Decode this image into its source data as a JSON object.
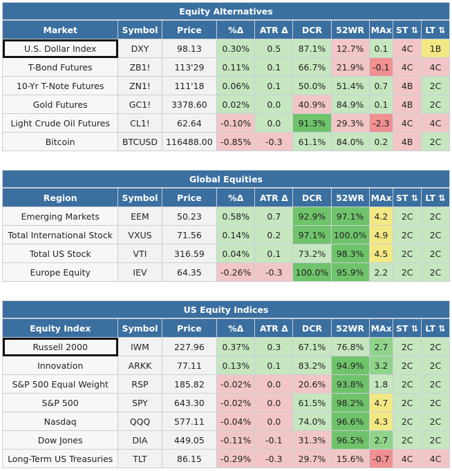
{
  "colors": {
    "header": "#3a6fa0",
    "green_light": "#c6e6c0",
    "green_mid": "#8fd48a",
    "green_strong": "#6fc36a",
    "red_light": "#f2c6c6",
    "red_mid": "#f09090",
    "yellow": "#f2e884"
  },
  "sections": [
    {
      "title": "Equity Alternatives",
      "columns": [
        "Market",
        "Symbol",
        "Price",
        "%Δ",
        "ATR Δ",
        "DCR",
        "52WR",
        "MAx",
        "ST ⇅",
        "LT ⇅"
      ],
      "rows": [
        {
          "name": "U.S. Dollar Index",
          "symbol": "DXY",
          "price": "98.13",
          "pct": "0.30%",
          "atr": "0.5",
          "dcr": "87.1%",
          "wr": "12.7%",
          "max": "0.1",
          "st": "4C",
          "lt": "1B"
        },
        {
          "name": "T-Bond Futures",
          "symbol": "ZB1!",
          "price": "113'29",
          "pct": "0.11%",
          "atr": "0.1",
          "dcr": "66.7%",
          "wr": "21.9%",
          "max": "-0.1",
          "st": "4C",
          "lt": "4C"
        },
        {
          "name": "10-Yr T-Note Futures",
          "symbol": "ZN1!",
          "price": "111'18",
          "pct": "0.06%",
          "atr": "0.1",
          "dcr": "50.0%",
          "wr": "51.4%",
          "max": "0.7",
          "st": "4B",
          "lt": "2C"
        },
        {
          "name": "Gold Futures",
          "symbol": "GC1!",
          "price": "3378.60",
          "pct": "0.02%",
          "atr": "0.0",
          "dcr": "40.9%",
          "wr": "84.9%",
          "max": "0.1",
          "st": "4B",
          "lt": "2C"
        },
        {
          "name": "Light Crude Oil Futures",
          "symbol": "CL1!",
          "price": "62.64",
          "pct": "-0.10%",
          "atr": "0.0",
          "dcr": "91.3%",
          "wr": "29.3%",
          "max": "-2.3",
          "st": "4C",
          "lt": "4C"
        },
        {
          "name": "Bitcoin",
          "symbol": "BTCUSD",
          "price": "116488.00",
          "pct": "-0.85%",
          "atr": "-0.3",
          "dcr": "61.1%",
          "wr": "84.0%",
          "max": "0.2",
          "st": "4B",
          "lt": "2C"
        }
      ]
    },
    {
      "title": "Global Equities",
      "columns": [
        "Region",
        "Symbol",
        "Price",
        "%Δ",
        "ATR Δ",
        "DCR",
        "52WR",
        "MAx",
        "ST ⇅",
        "LT ⇅"
      ],
      "rows": [
        {
          "name": "Emerging Markets",
          "symbol": "EEM",
          "price": "50.23",
          "pct": "0.58%",
          "atr": "0.7",
          "dcr": "92.9%",
          "wr": "97.1%",
          "max": "4.2",
          "st": "2C",
          "lt": "2C"
        },
        {
          "name": "Total International Stock",
          "symbol": "VXUS",
          "price": "71.56",
          "pct": "0.14%",
          "atr": "0.2",
          "dcr": "97.1%",
          "wr": "100.0%",
          "max": "4.9",
          "st": "2C",
          "lt": "2C"
        },
        {
          "name": "Total US Stock",
          "symbol": "VTI",
          "price": "316.59",
          "pct": "0.04%",
          "atr": "0.1",
          "dcr": "73.2%",
          "wr": "98.3%",
          "max": "4.5",
          "st": "2C",
          "lt": "2C"
        },
        {
          "name": "Europe Equity",
          "symbol": "IEV",
          "price": "64.35",
          "pct": "-0.26%",
          "atr": "-0.3",
          "dcr": "100.0%",
          "wr": "95.9%",
          "max": "2.2",
          "st": "2C",
          "lt": "2C"
        }
      ]
    },
    {
      "title": "US Equity Indices",
      "columns": [
        "Equity Index",
        "Symbol",
        "Price",
        "%Δ",
        "ATR Δ",
        "DCR",
        "52WR",
        "MAx",
        "ST ⇅",
        "LT ⇅"
      ],
      "rows": [
        {
          "name": "Russell 2000",
          "symbol": "IWM",
          "price": "227.96",
          "pct": "0.37%",
          "atr": "0.3",
          "dcr": "67.1%",
          "wr": "76.8%",
          "max": "2.7",
          "st": "2C",
          "lt": "2C"
        },
        {
          "name": "Innovation",
          "symbol": "ARKK",
          "price": "77.11",
          "pct": "0.13%",
          "atr": "0.1",
          "dcr": "83.2%",
          "wr": "94.9%",
          "max": "3.2",
          "st": "2C",
          "lt": "2C"
        },
        {
          "name": "S&P 500 Equal Weight",
          "symbol": "RSP",
          "price": "185.82",
          "pct": "-0.02%",
          "atr": "0.0",
          "dcr": "20.6%",
          "wr": "93.8%",
          "max": "1.8",
          "st": "2C",
          "lt": "2C"
        },
        {
          "name": "S&P 500",
          "symbol": "SPY",
          "price": "643.30",
          "pct": "-0.02%",
          "atr": "0.0",
          "dcr": "61.5%",
          "wr": "98.2%",
          "max": "4.7",
          "st": "2C",
          "lt": "2C"
        },
        {
          "name": "Nasdaq",
          "symbol": "QQQ",
          "price": "577.11",
          "pct": "-0.04%",
          "atr": "0.0",
          "dcr": "74.0%",
          "wr": "96.6%",
          "max": "4.3",
          "st": "2C",
          "lt": "2C"
        },
        {
          "name": "Dow Jones",
          "symbol": "DIA",
          "price": "449.05",
          "pct": "-0.11%",
          "atr": "-0.1",
          "dcr": "31.3%",
          "wr": "96.5%",
          "max": "2.7",
          "st": "2C",
          "lt": "2C"
        },
        {
          "name": "Long-Term US Treasuries",
          "symbol": "TLT",
          "price": "86.15",
          "pct": "-0.29%",
          "atr": "-0.3",
          "dcr": "29.7%",
          "wr": "15.6%",
          "max": "-0.7",
          "st": "4C",
          "lt": "4C"
        }
      ]
    }
  ]
}
